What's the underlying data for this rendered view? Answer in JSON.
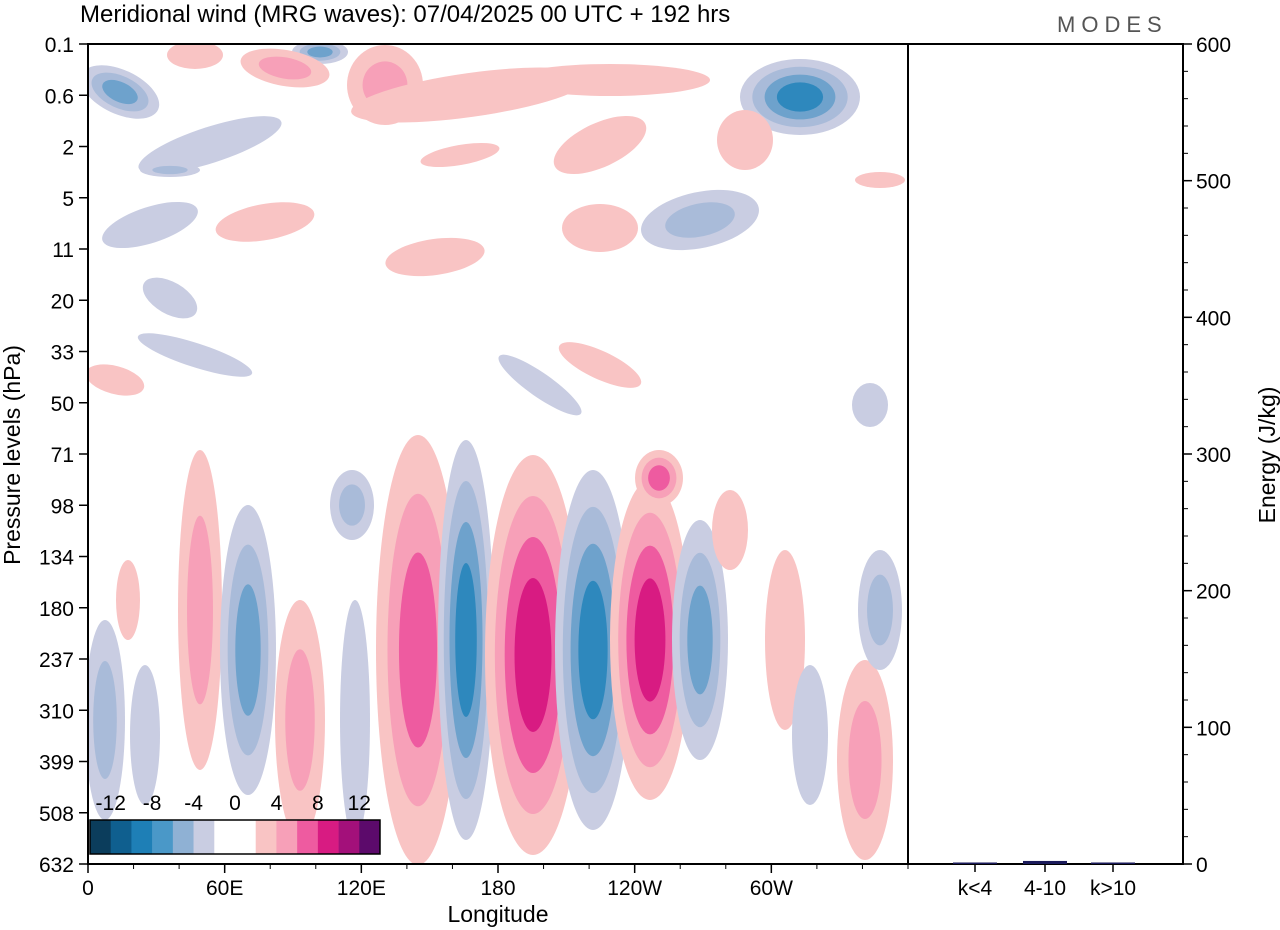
{
  "chart_data": {
    "type": "heatmap",
    "title": "Meridional wind (MRG waves):  07/04/2025  00 UTC  + 192 hrs",
    "logo": "MODES",
    "xlabel": "Longitude",
    "ylabel": "Pressure levels (hPa)",
    "y2label": "Energy (J/kg)",
    "x_ticks": [
      "0",
      "60E",
      "120E",
      "180",
      "120W",
      "60W"
    ],
    "y_ticks": [
      "0.1",
      "0.6",
      "2",
      "5",
      "11",
      "20",
      "33",
      "50",
      "71",
      "98",
      "134",
      "180",
      "237",
      "310",
      "399",
      "508",
      "632"
    ],
    "y2_ticks": [
      "0",
      "100",
      "200",
      "300",
      "400",
      "500",
      "600"
    ],
    "y2lim": [
      0,
      600
    ],
    "colorbar": {
      "labels": [
        "-12",
        "-8",
        "-4",
        "0",
        "4",
        "8",
        "12"
      ],
      "colors": [
        "#0b3d5c",
        "#0f5f8f",
        "#1e7fb6",
        "#4a98c8",
        "#8fb1d4",
        "#c9cde2",
        "#ffffff",
        "#ffffff",
        "#f9c4c4",
        "#f7a0b8",
        "#ee5ba0",
        "#d81b82",
        "#a3107a",
        "#5c0a6b"
      ]
    },
    "energy_bars": {
      "categories": [
        "k<4",
        "4-10",
        "k>10"
      ],
      "values": [
        0.3,
        1.5,
        0.2
      ],
      "color": "#1a1a5a"
    }
  }
}
